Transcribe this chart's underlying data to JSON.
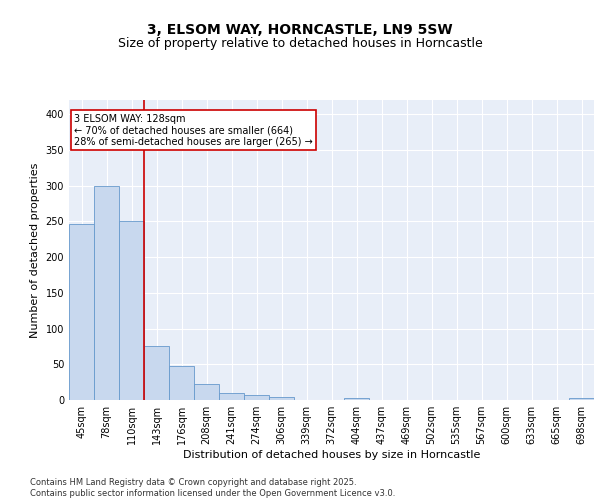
{
  "title": "3, ELSOM WAY, HORNCASTLE, LN9 5SW",
  "subtitle": "Size of property relative to detached houses in Horncastle",
  "xlabel": "Distribution of detached houses by size in Horncastle",
  "ylabel": "Number of detached properties",
  "categories": [
    "45sqm",
    "78sqm",
    "110sqm",
    "143sqm",
    "176sqm",
    "208sqm",
    "241sqm",
    "274sqm",
    "306sqm",
    "339sqm",
    "372sqm",
    "404sqm",
    "437sqm",
    "469sqm",
    "502sqm",
    "535sqm",
    "567sqm",
    "600sqm",
    "633sqm",
    "665sqm",
    "698sqm"
  ],
  "values": [
    247,
    300,
    250,
    76,
    47,
    22,
    10,
    7,
    4,
    0,
    0,
    3,
    0,
    0,
    0,
    0,
    0,
    0,
    0,
    0,
    3
  ],
  "bar_color": "#c8d8ee",
  "bar_edge_color": "#6699cc",
  "vline_x_index": 2.5,
  "vline_color": "#cc0000",
  "annotation_text": "3 ELSOM WAY: 128sqm\n← 70% of detached houses are smaller (664)\n28% of semi-detached houses are larger (265) →",
  "annotation_box_color": "#cc0000",
  "annotation_fontsize": 7.0,
  "ylim": [
    0,
    420
  ],
  "yticks": [
    0,
    50,
    100,
    150,
    200,
    250,
    300,
    350,
    400
  ],
  "background_color": "#ffffff",
  "plot_bg_color": "#e8eef8",
  "grid_color": "#ffffff",
  "title_fontsize": 10,
  "subtitle_fontsize": 9,
  "xlabel_fontsize": 8,
  "ylabel_fontsize": 8,
  "tick_fontsize": 7,
  "footer_text": "Contains HM Land Registry data © Crown copyright and database right 2025.\nContains public sector information licensed under the Open Government Licence v3.0.",
  "footer_fontsize": 6
}
